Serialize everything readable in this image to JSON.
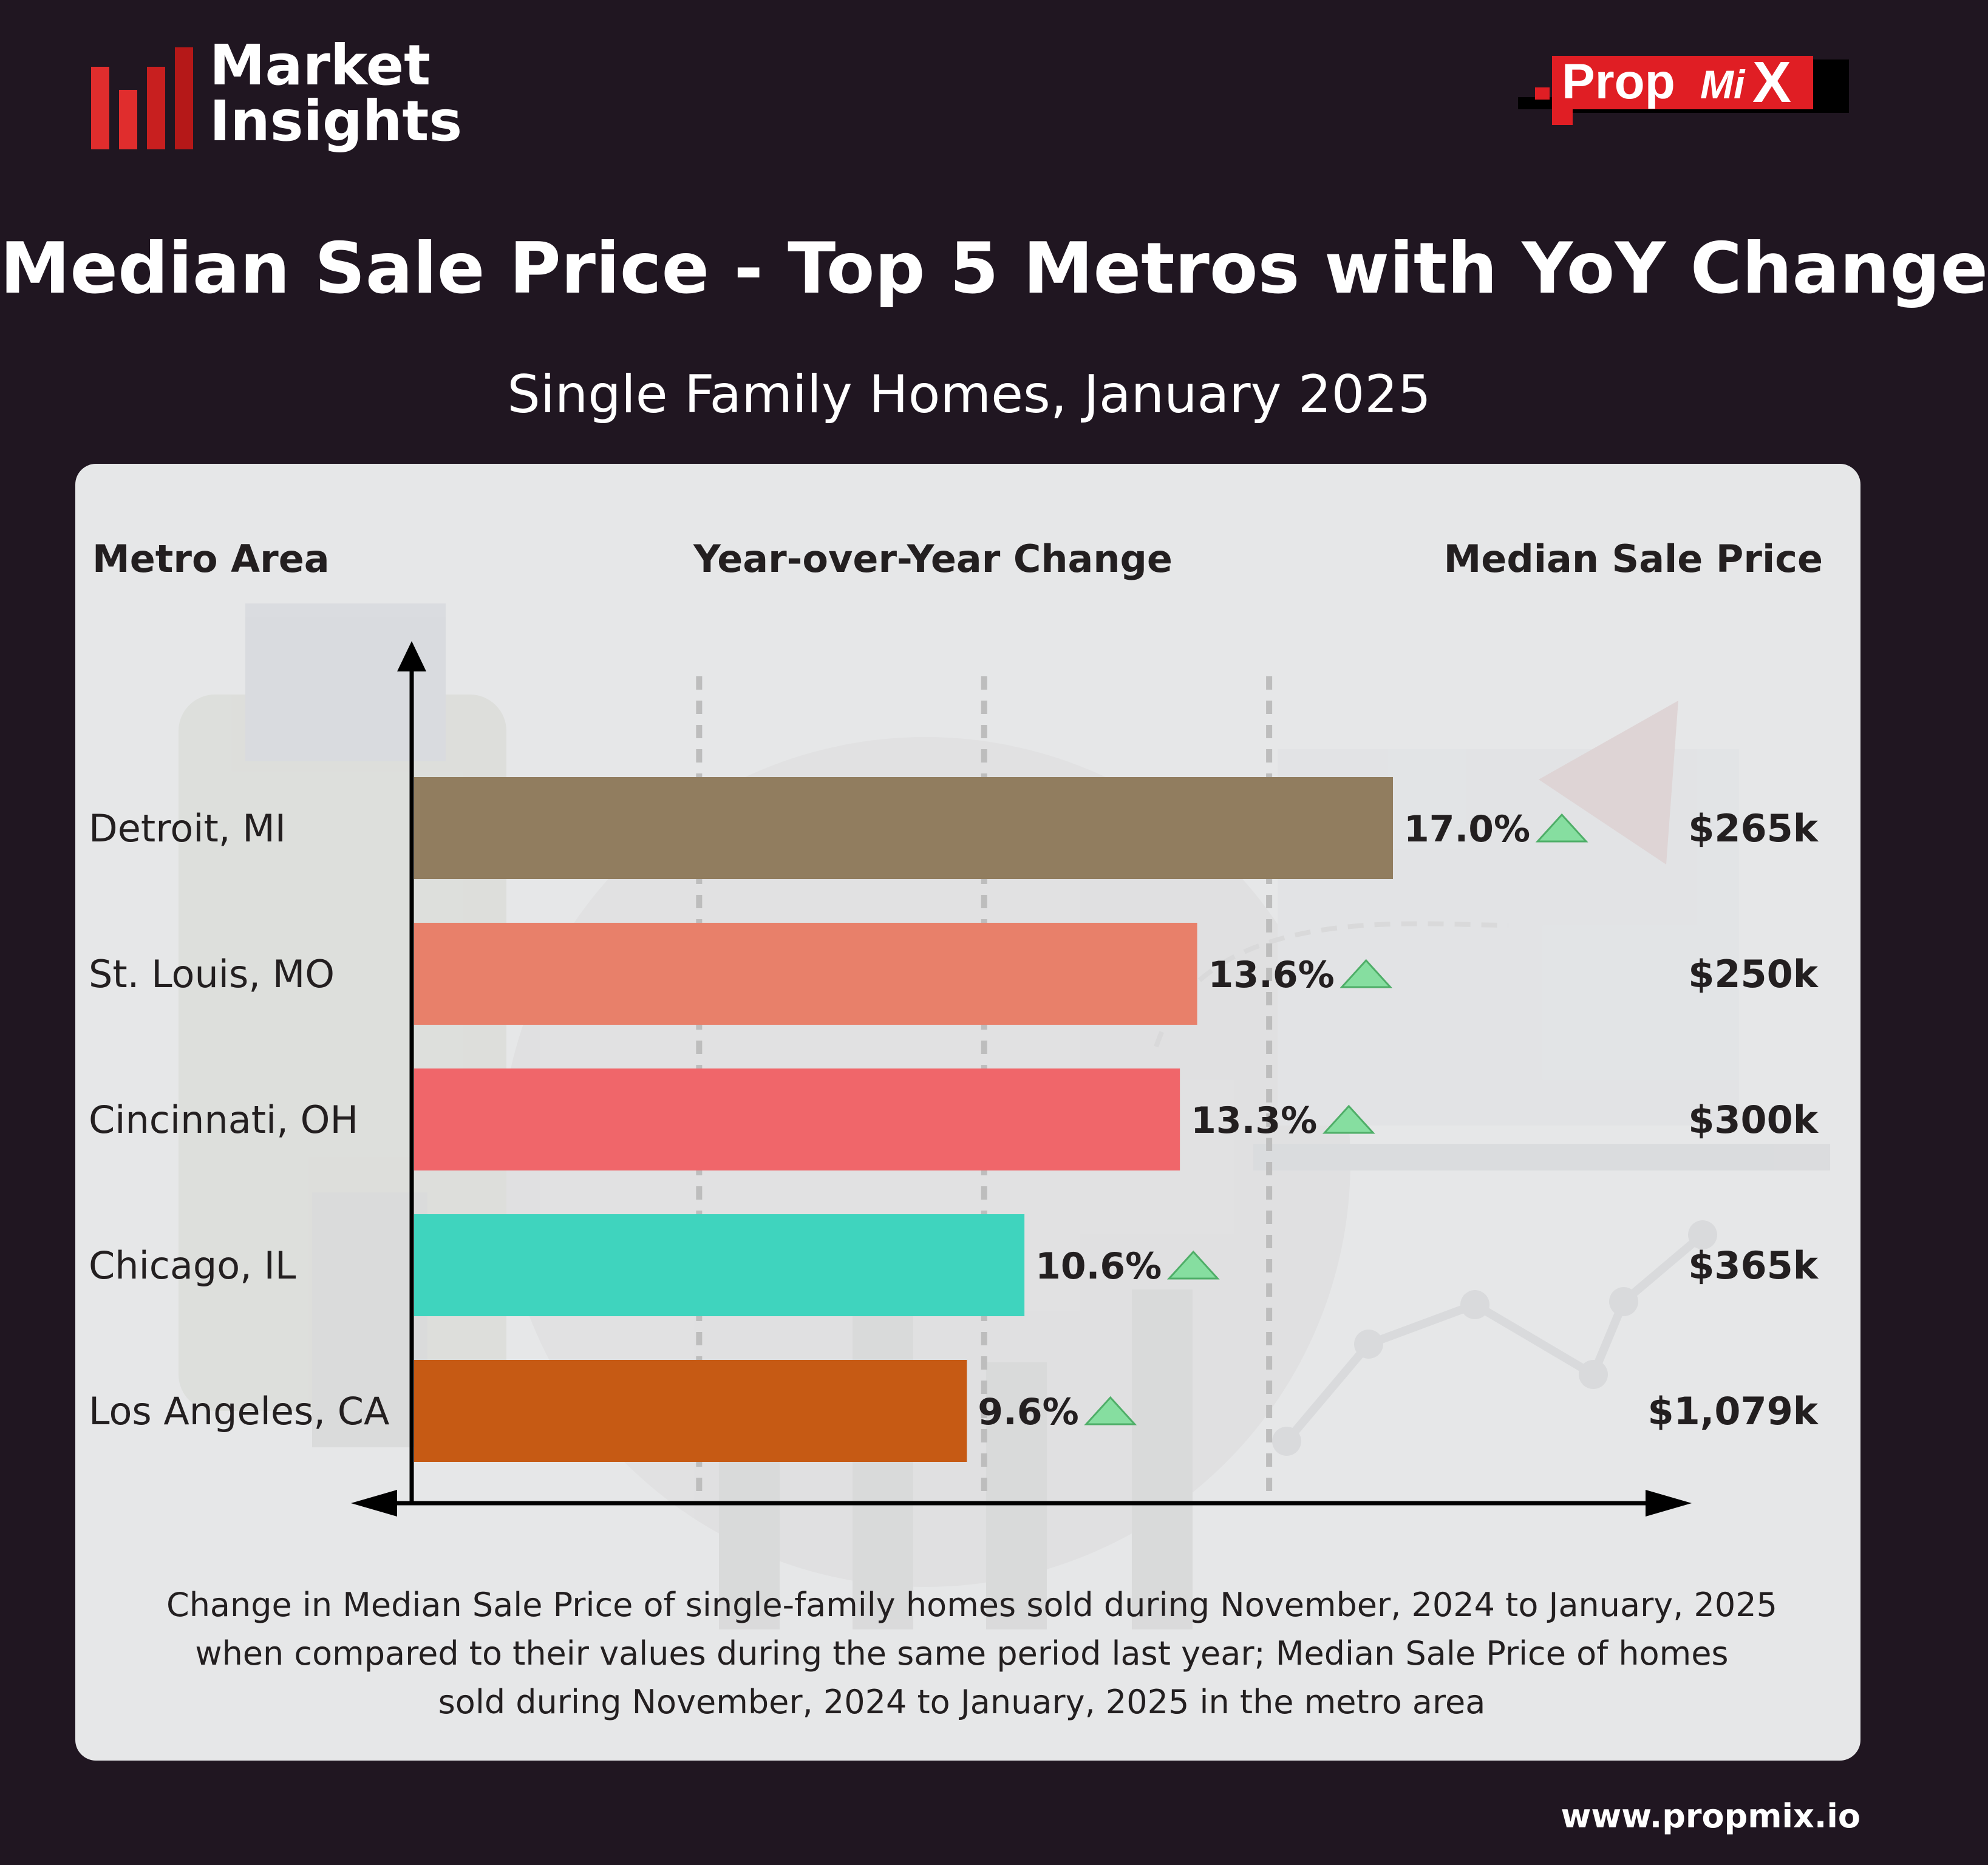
{
  "brand": {
    "line1": "Market",
    "line2": "Insights",
    "bar_colors": [
      "#e02d2d",
      "#e02d2d",
      "#c81f1f",
      "#b51818"
    ]
  },
  "logo": {
    "text_main": "Prop",
    "text_mi": "Mi",
    "text_x": "X",
    "color": "#e01e24"
  },
  "title": "Median Sale Price - Top 5 Metros with YoY Change",
  "subtitle": "Single Family Homes, January 2025",
  "columns": {
    "metro": "Metro Area",
    "yoy": "Year-over-Year Change",
    "price": "Median Sale Price"
  },
  "chart_data": {
    "type": "bar",
    "orientation": "horizontal",
    "categories": [
      "Detroit, MI",
      "St. Louis, MO",
      "Cincinnati, OH",
      "Chicago, IL",
      "Los Angeles, CA"
    ],
    "values": [
      17.0,
      13.6,
      13.3,
      10.6,
      9.6
    ],
    "value_labels": [
      "17.0%",
      "13.6%",
      "13.3%",
      "10.6%",
      "9.6%"
    ],
    "bar_colors": [
      "#917d5f",
      "#e8806a",
      "#f0666a",
      "#3fd4be",
      "#c65a14"
    ],
    "median_prices": [
      "$265k",
      "$250k",
      "$300k",
      "$365k",
      "$1,079k"
    ],
    "trend": "up",
    "trend_color": "#86dea0",
    "xlim": [
      0,
      20
    ],
    "grid": "dashed-vertical",
    "xlabel": "Year-over-Year Change",
    "ylabel": "Metro Area"
  },
  "caption": {
    "line1": "Change in Median Sale Price of single-family homes sold during November, 2024 to January, 2025",
    "line2": "when compared to their values during the same period last year; Median Sale Price of homes",
    "line3": "sold during November, 2024 to January, 2025 in the metro area"
  },
  "footer": {
    "url": "www.propmix.io"
  }
}
